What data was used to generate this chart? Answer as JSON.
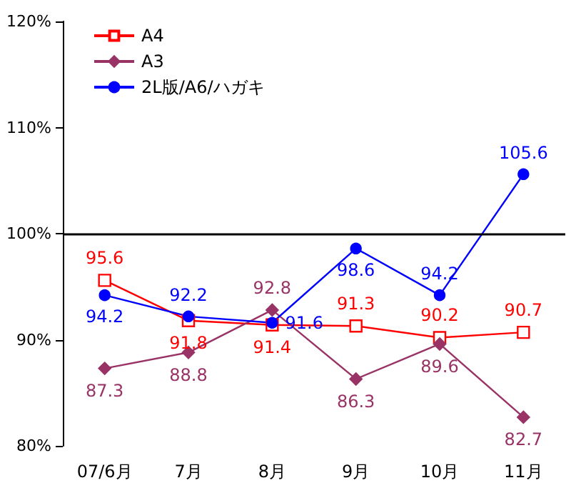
{
  "chart_data": {
    "type": "line",
    "categories": [
      "07/6月",
      "7月",
      "8月",
      "9月",
      "10月",
      "11月"
    ],
    "series": [
      {
        "name": "A4",
        "color": "#ff0000",
        "marker": "square",
        "values": [
          95.6,
          91.8,
          91.4,
          91.3,
          90.2,
          90.7
        ]
      },
      {
        "name": "A3",
        "color": "#993366",
        "marker": "diamond",
        "values": [
          87.3,
          88.8,
          92.8,
          86.3,
          89.6,
          82.7
        ]
      },
      {
        "name": "2L版/A6/ハガキ",
        "color": "#0000ff",
        "marker": "circle",
        "values": [
          94.2,
          92.2,
          91.6,
          98.6,
          94.2,
          105.6
        ]
      }
    ],
    "ylim": [
      80,
      120
    ],
    "yticks": [
      {
        "value": 80,
        "label": "80%"
      },
      {
        "value": 90,
        "label": "90%"
      },
      {
        "value": 100,
        "label": "100%"
      },
      {
        "value": 110,
        "label": "110%"
      },
      {
        "value": 120,
        "label": "120%"
      }
    ],
    "ref_lines": [
      {
        "axis": "y",
        "value": 100,
        "color": "#000000"
      }
    ],
    "data_labels": true,
    "grid": false,
    "legend": "top left"
  }
}
